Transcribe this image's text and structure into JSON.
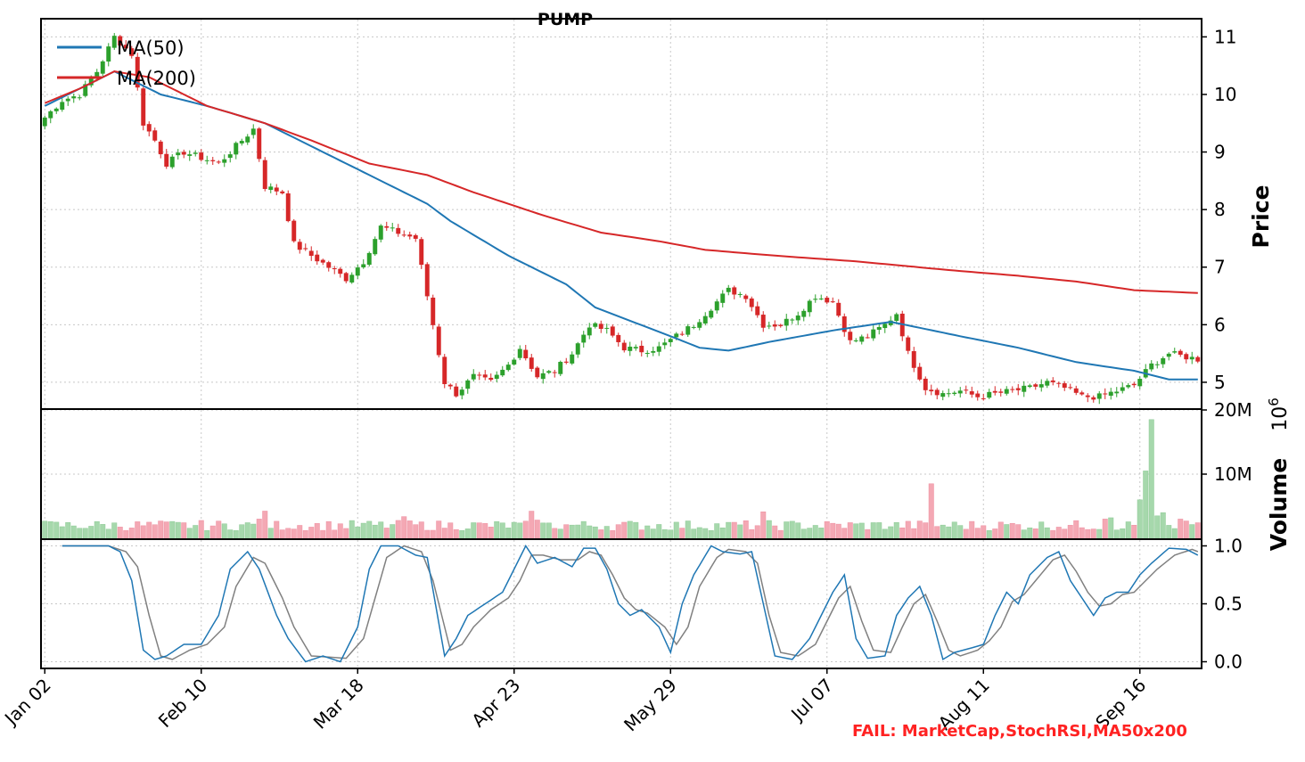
{
  "chart_data": {
    "title": "PUMP",
    "x_tick_labels": [
      "Jan 02",
      "Feb 10",
      "Mar 18",
      "Apr 23",
      "May 29",
      "Jul 07",
      "Aug 11",
      "Sep 16"
    ],
    "x_tick_session_index": [
      0,
      27,
      54,
      81,
      108,
      135,
      162,
      189
    ],
    "session_count": 200,
    "colors": {
      "up": "#2ca02c",
      "down": "#d62728",
      "ma50": "#1f77b4",
      "ma200": "#d62728",
      "stoch_d": "#808080",
      "fail": "#ff2222"
    },
    "panels": [
      {
        "type": "candlestick",
        "ylabel": "Price",
        "ylim": [
          4.55,
          11.3
        ],
        "y_ticks": [
          5,
          6,
          7,
          8,
          9,
          10,
          11
        ],
        "grid": true,
        "legend_position": "upper-left",
        "ohlc_anchors": [
          [
            0,
            9.6
          ],
          [
            3,
            9.9
          ],
          [
            6,
            10.0
          ],
          [
            9,
            10.4
          ],
          [
            12,
            11.0
          ],
          [
            15,
            10.7
          ],
          [
            17,
            9.5
          ],
          [
            19,
            9.2
          ],
          [
            21,
            8.8
          ],
          [
            24,
            9.0
          ],
          [
            27,
            8.9
          ],
          [
            30,
            8.8
          ],
          [
            33,
            9.1
          ],
          [
            36,
            9.4
          ],
          [
            38,
            8.4
          ],
          [
            41,
            8.3
          ],
          [
            43,
            7.4
          ],
          [
            46,
            7.2
          ],
          [
            49,
            7.0
          ],
          [
            52,
            6.8
          ],
          [
            55,
            7.1
          ],
          [
            58,
            7.7
          ],
          [
            61,
            7.6
          ],
          [
            64,
            7.5
          ],
          [
            67,
            6.0
          ],
          [
            69,
            5.0
          ],
          [
            71,
            4.8
          ],
          [
            74,
            5.1
          ],
          [
            77,
            5.0
          ],
          [
            80,
            5.3
          ],
          [
            82,
            5.6
          ],
          [
            85,
            5.1
          ],
          [
            88,
            5.2
          ],
          [
            91,
            5.5
          ],
          [
            94,
            6.0
          ],
          [
            97,
            5.9
          ],
          [
            100,
            5.6
          ],
          [
            103,
            5.55
          ],
          [
            106,
            5.6
          ],
          [
            109,
            5.8
          ],
          [
            112,
            6.0
          ],
          [
            115,
            6.3
          ],
          [
            118,
            6.6
          ],
          [
            121,
            6.5
          ],
          [
            124,
            6.0
          ],
          [
            127,
            6.0
          ],
          [
            130,
            6.2
          ],
          [
            133,
            6.5
          ],
          [
            136,
            6.4
          ],
          [
            139,
            5.7
          ],
          [
            142,
            5.8
          ],
          [
            145,
            6.0
          ],
          [
            147,
            6.2
          ],
          [
            149,
            5.5
          ],
          [
            152,
            4.9
          ],
          [
            155,
            4.8
          ],
          [
            158,
            4.85
          ],
          [
            161,
            4.75
          ],
          [
            164,
            4.8
          ],
          [
            167,
            4.85
          ],
          [
            170,
            4.9
          ],
          [
            173,
            5.0
          ],
          [
            176,
            4.9
          ],
          [
            179,
            4.75
          ],
          [
            182,
            4.75
          ],
          [
            185,
            4.85
          ],
          [
            188,
            4.95
          ],
          [
            191,
            5.3
          ],
          [
            194,
            5.5
          ],
          [
            199,
            5.4
          ]
        ],
        "series": [
          {
            "name": "MA(50)",
            "x_start": 0,
            "points": [
              [
                0,
                9.8
              ],
              [
                6,
                10.1
              ],
              [
                12,
                10.4
              ],
              [
                20,
                10.0
              ],
              [
                28,
                9.8
              ],
              [
                38,
                9.5
              ],
              [
                48,
                9.0
              ],
              [
                58,
                8.5
              ],
              [
                66,
                8.1
              ],
              [
                70,
                7.8
              ],
              [
                80,
                7.2
              ],
              [
                90,
                6.7
              ],
              [
                95,
                6.3
              ],
              [
                108,
                5.8
              ],
              [
                113,
                5.6
              ],
              [
                118,
                5.55
              ],
              [
                125,
                5.7
              ],
              [
                136,
                5.9
              ],
              [
                146,
                6.05
              ],
              [
                158,
                5.8
              ],
              [
                168,
                5.6
              ],
              [
                178,
                5.35
              ],
              [
                188,
                5.2
              ],
              [
                194,
                5.05
              ],
              [
                199,
                5.05
              ]
            ]
          },
          {
            "name": "MA(200)",
            "x_start": 0,
            "points": [
              [
                0,
                9.85
              ],
              [
                6,
                10.1
              ],
              [
                12,
                10.4
              ],
              [
                18,
                10.3
              ],
              [
                28,
                9.8
              ],
              [
                38,
                9.5
              ],
              [
                46,
                9.2
              ],
              [
                56,
                8.8
              ],
              [
                66,
                8.6
              ],
              [
                74,
                8.3
              ],
              [
                86,
                7.9
              ],
              [
                96,
                7.6
              ],
              [
                106,
                7.45
              ],
              [
                114,
                7.3
              ],
              [
                126,
                7.2
              ],
              [
                140,
                7.1
              ],
              [
                156,
                6.95
              ],
              [
                168,
                6.85
              ],
              [
                178,
                6.75
              ],
              [
                188,
                6.6
              ],
              [
                199,
                6.55
              ]
            ]
          }
        ]
      },
      {
        "type": "bar",
        "ylabel": "Volume",
        "exponent_label": "10^6",
        "ylim": [
          0,
          20
        ],
        "y_ticks": [
          10,
          20
        ],
        "y_tick_labels": [
          "10M",
          "20M"
        ],
        "grid": true,
        "notable_values": [
          [
            153,
            8.5
          ],
          [
            189,
            6.0
          ],
          [
            190,
            10.5
          ],
          [
            191,
            18.5
          ],
          [
            192,
            3.5
          ],
          [
            193,
            4.0
          ],
          [
            196,
            3.0
          ]
        ],
        "base_volume": 1.2
      },
      {
        "type": "line",
        "name": "StochRSI",
        "ylim": [
          -0.05,
          1.05
        ],
        "y_ticks": [
          0.0,
          0.5,
          1.0
        ],
        "y_tick_labels": [
          "0.0",
          "0.5",
          "1.0"
        ],
        "grid": true,
        "x_start": 3,
        "k_points": [
          [
            3,
            1.0
          ],
          [
            11,
            1.0
          ],
          [
            13,
            0.95
          ],
          [
            15,
            0.7
          ],
          [
            17,
            0.1
          ],
          [
            19,
            0.02
          ],
          [
            21,
            0.05
          ],
          [
            24,
            0.15
          ],
          [
            27,
            0.15
          ],
          [
            30,
            0.4
          ],
          [
            32,
            0.8
          ],
          [
            35,
            0.95
          ],
          [
            37,
            0.8
          ],
          [
            40,
            0.4
          ],
          [
            42,
            0.2
          ],
          [
            45,
            0.0
          ],
          [
            48,
            0.05
          ],
          [
            51,
            0.0
          ],
          [
            54,
            0.3
          ],
          [
            56,
            0.8
          ],
          [
            58,
            1.0
          ],
          [
            61,
            1.0
          ],
          [
            64,
            0.92
          ],
          [
            66,
            0.9
          ],
          [
            69,
            0.05
          ],
          [
            71,
            0.2
          ],
          [
            73,
            0.4
          ],
          [
            76,
            0.5
          ],
          [
            79,
            0.6
          ],
          [
            81,
            0.8
          ],
          [
            83,
            1.0
          ],
          [
            85,
            0.85
          ],
          [
            88,
            0.9
          ],
          [
            91,
            0.82
          ],
          [
            93,
            0.98
          ],
          [
            95,
            0.98
          ],
          [
            97,
            0.8
          ],
          [
            99,
            0.5
          ],
          [
            101,
            0.4
          ],
          [
            103,
            0.45
          ],
          [
            106,
            0.3
          ],
          [
            108,
            0.08
          ],
          [
            110,
            0.5
          ],
          [
            112,
            0.75
          ],
          [
            115,
            1.0
          ],
          [
            117,
            0.95
          ],
          [
            120,
            0.93
          ],
          [
            122,
            0.95
          ],
          [
            124,
            0.5
          ],
          [
            126,
            0.05
          ],
          [
            129,
            0.02
          ],
          [
            132,
            0.2
          ],
          [
            134,
            0.4
          ],
          [
            136,
            0.6
          ],
          [
            138,
            0.75
          ],
          [
            140,
            0.2
          ],
          [
            142,
            0.03
          ],
          [
            145,
            0.05
          ],
          [
            147,
            0.4
          ],
          [
            149,
            0.55
          ],
          [
            151,
            0.65
          ],
          [
            153,
            0.4
          ],
          [
            155,
            0.02
          ],
          [
            157,
            0.08
          ],
          [
            160,
            0.12
          ],
          [
            162,
            0.15
          ],
          [
            164,
            0.4
          ],
          [
            166,
            0.6
          ],
          [
            168,
            0.5
          ],
          [
            170,
            0.75
          ],
          [
            173,
            0.9
          ],
          [
            175,
            0.95
          ],
          [
            177,
            0.7
          ],
          [
            179,
            0.55
          ],
          [
            181,
            0.4
          ],
          [
            183,
            0.55
          ],
          [
            185,
            0.6
          ],
          [
            187,
            0.6
          ],
          [
            189,
            0.75
          ],
          [
            191,
            0.85
          ],
          [
            194,
            0.98
          ],
          [
            197,
            0.97
          ],
          [
            199,
            0.92
          ]
        ],
        "d_points": [
          [
            3,
            1.0
          ],
          [
            11,
            1.0
          ],
          [
            14,
            0.95
          ],
          [
            16,
            0.82
          ],
          [
            18,
            0.4
          ],
          [
            20,
            0.05
          ],
          [
            22,
            0.02
          ],
          [
            25,
            0.1
          ],
          [
            28,
            0.15
          ],
          [
            31,
            0.3
          ],
          [
            33,
            0.65
          ],
          [
            36,
            0.9
          ],
          [
            38,
            0.85
          ],
          [
            41,
            0.55
          ],
          [
            43,
            0.3
          ],
          [
            46,
            0.05
          ],
          [
            49,
            0.04
          ],
          [
            52,
            0.03
          ],
          [
            55,
            0.2
          ],
          [
            57,
            0.55
          ],
          [
            59,
            0.9
          ],
          [
            62,
            1.0
          ],
          [
            65,
            0.95
          ],
          [
            67,
            0.7
          ],
          [
            70,
            0.1
          ],
          [
            72,
            0.15
          ],
          [
            74,
            0.3
          ],
          [
            77,
            0.45
          ],
          [
            80,
            0.55
          ],
          [
            82,
            0.7
          ],
          [
            84,
            0.92
          ],
          [
            86,
            0.92
          ],
          [
            89,
            0.88
          ],
          [
            92,
            0.88
          ],
          [
            94,
            0.95
          ],
          [
            96,
            0.92
          ],
          [
            98,
            0.75
          ],
          [
            100,
            0.55
          ],
          [
            102,
            0.45
          ],
          [
            104,
            0.42
          ],
          [
            107,
            0.3
          ],
          [
            109,
            0.15
          ],
          [
            111,
            0.3
          ],
          [
            113,
            0.65
          ],
          [
            116,
            0.9
          ],
          [
            118,
            0.97
          ],
          [
            121,
            0.95
          ],
          [
            123,
            0.85
          ],
          [
            125,
            0.4
          ],
          [
            127,
            0.08
          ],
          [
            130,
            0.05
          ],
          [
            133,
            0.15
          ],
          [
            135,
            0.35
          ],
          [
            137,
            0.55
          ],
          [
            139,
            0.65
          ],
          [
            141,
            0.35
          ],
          [
            143,
            0.1
          ],
          [
            146,
            0.08
          ],
          [
            148,
            0.3
          ],
          [
            150,
            0.5
          ],
          [
            152,
            0.58
          ],
          [
            154,
            0.35
          ],
          [
            156,
            0.1
          ],
          [
            158,
            0.05
          ],
          [
            161,
            0.1
          ],
          [
            163,
            0.18
          ],
          [
            165,
            0.3
          ],
          [
            167,
            0.52
          ],
          [
            169,
            0.58
          ],
          [
            171,
            0.7
          ],
          [
            174,
            0.88
          ],
          [
            176,
            0.92
          ],
          [
            178,
            0.78
          ],
          [
            180,
            0.6
          ],
          [
            182,
            0.48
          ],
          [
            184,
            0.5
          ],
          [
            186,
            0.58
          ],
          [
            188,
            0.6
          ],
          [
            190,
            0.7
          ],
          [
            192,
            0.8
          ],
          [
            195,
            0.92
          ],
          [
            198,
            0.97
          ],
          [
            199,
            0.95
          ]
        ]
      }
    ],
    "annotation": "FAIL: MarketCap,StochRSI,MA50x200"
  }
}
